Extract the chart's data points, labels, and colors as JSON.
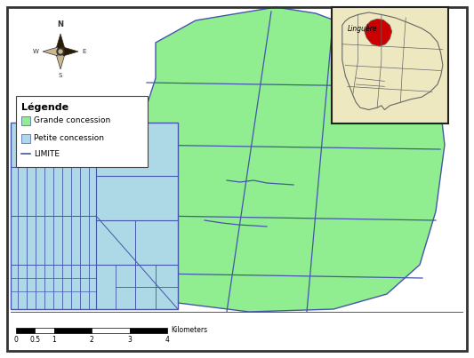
{
  "bg_color": "#ffffff",
  "border_color": "#000000",
  "grande_concession_color": "#90EE90",
  "petite_concession_color": "#ADD8E6",
  "line_color": "#4455aa",
  "inset_bg": "#EEE8C0",
  "inset_region_bg": "#E8E0B0",
  "inset_red": "#CC0000",
  "inset_border": "#666666",
  "legend_title": "Légende",
  "legend_items": [
    "Grande concession",
    "Petite concession",
    "LIMITE"
  ],
  "scale_label": "Kilometers",
  "scale_ticks": [
    0,
    0.5,
    1,
    2,
    3,
    4
  ],
  "inset_label": "Linguère"
}
